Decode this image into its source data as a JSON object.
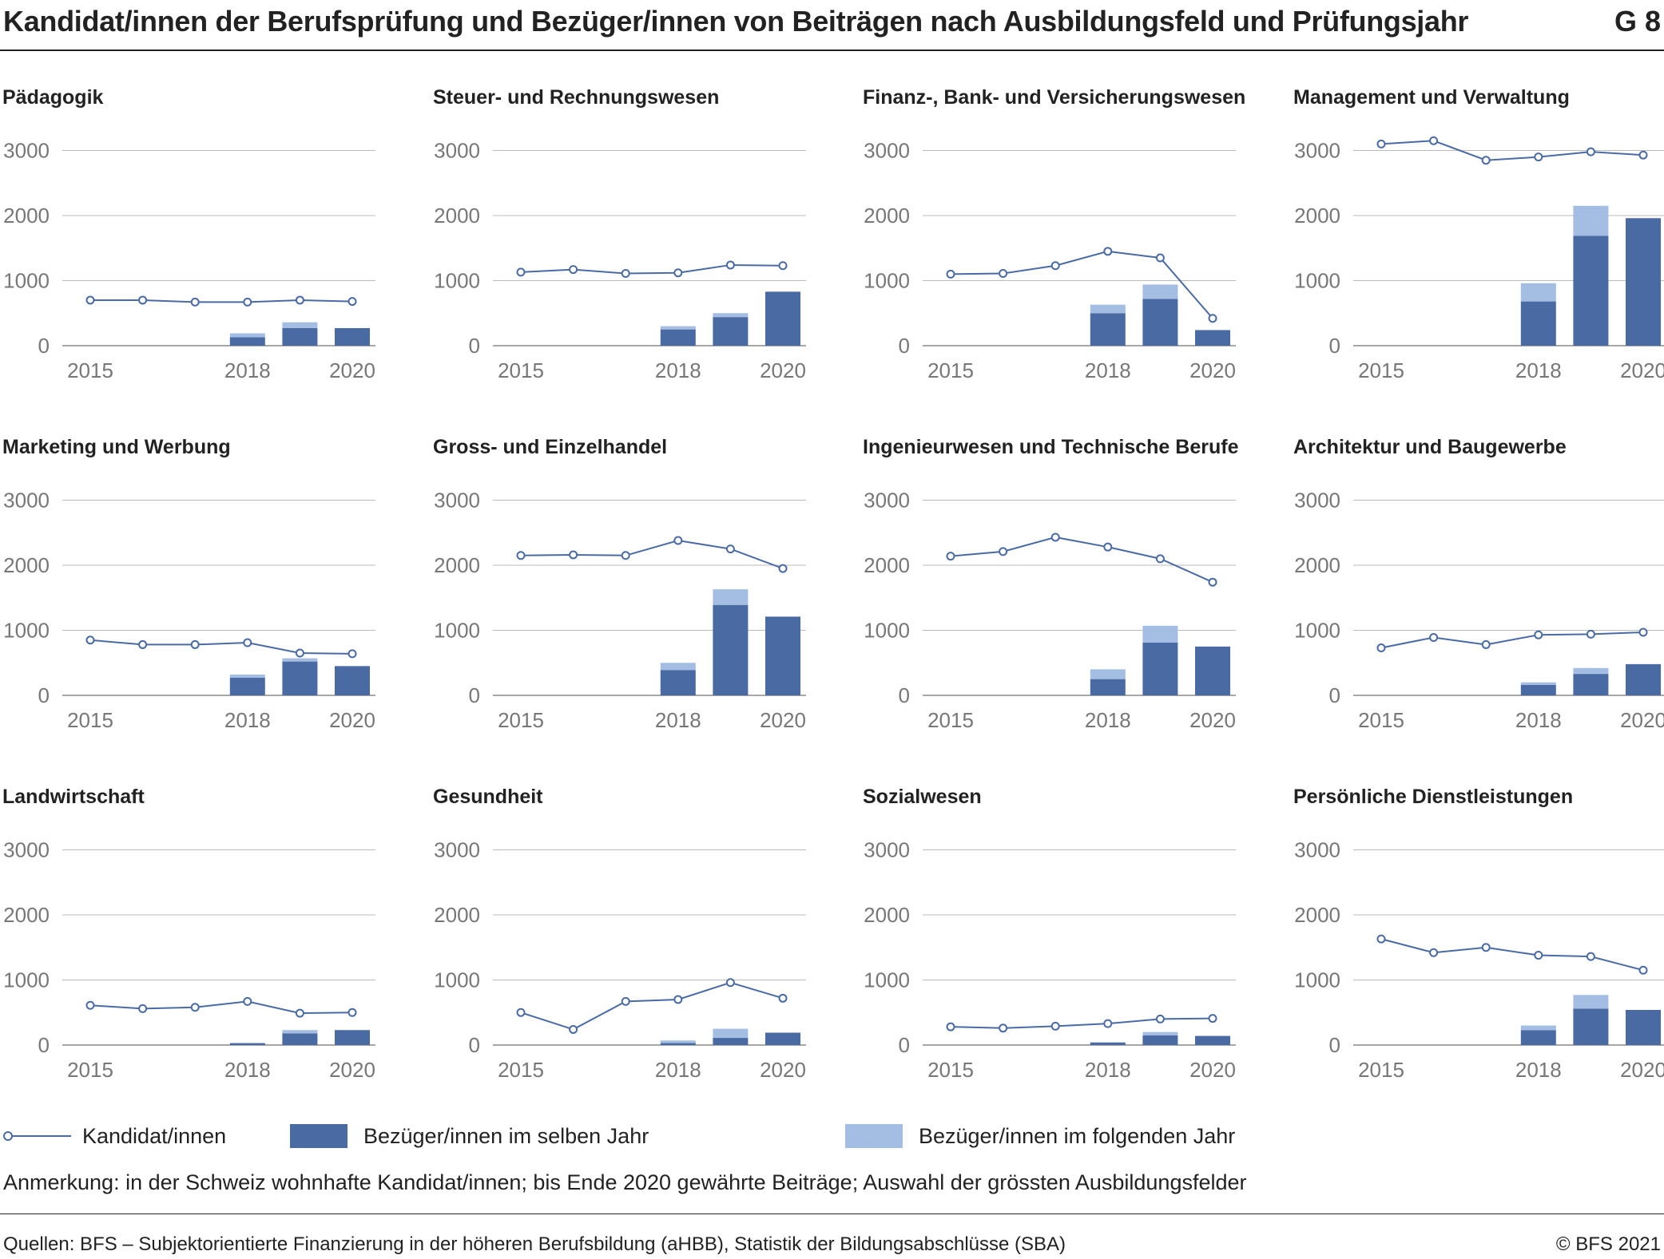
{
  "header": {
    "title": "Kandidat/innen der Berufsprüfung und Bezüger/innen von Beiträgen nach Ausbildungsfeld und Prüfungsjahr",
    "code": "G 8"
  },
  "legend": {
    "candidates": "Kandidat/innen",
    "same_year": "Bezüger/innen im selben Jahr",
    "next_year": "Bezüger/innen im folgenden Jahr"
  },
  "colors": {
    "candidates": "#4a6aa3",
    "same_year": "#4a6aa3",
    "next_year": "#a3bde3",
    "grid": "#bbbbbb"
  },
  "note": "Anmerkung: in der Schweiz wohnhafte Kandidat/innen; bis Ende 2020 gewährte Beiträge; Auswahl der grössten Ausbildungsfelder",
  "source": "Quellen: BFS – Subjektorientierte Finanzierung in der höheren Berufsbildung (aHBB), Statistik der Bildungsabschlüsse (SBA)",
  "copyright": "© BFS 2021",
  "chart_data": [
    {
      "type": "bar+line",
      "title": "Pädagogik",
      "x": [
        2015,
        2016,
        2017,
        2018,
        2019,
        2020
      ],
      "x_ticks": [
        "2015",
        "2018",
        "2020"
      ],
      "y_ticks": [
        "0",
        "1000",
        "2000",
        "3000"
      ],
      "ylim": [
        0,
        3000
      ],
      "grid": true,
      "candidates": [
        700,
        700,
        670,
        670,
        700,
        680
      ],
      "same_year": [
        null,
        null,
        null,
        130,
        270,
        270
      ],
      "next_year": [
        null,
        null,
        null,
        60,
        90,
        0
      ]
    },
    {
      "type": "bar+line",
      "title": "Steuer- und Rechnungswesen",
      "x": [
        2015,
        2016,
        2017,
        2018,
        2019,
        2020
      ],
      "x_ticks": [
        "2015",
        "2018",
        "2020"
      ],
      "y_ticks": [
        "0",
        "1000",
        "2000",
        "3000"
      ],
      "ylim": [
        0,
        3000
      ],
      "grid": true,
      "candidates": [
        1130,
        1170,
        1110,
        1120,
        1240,
        1230
      ],
      "same_year": [
        null,
        null,
        null,
        250,
        440,
        830
      ],
      "next_year": [
        null,
        null,
        null,
        50,
        60,
        0
      ]
    },
    {
      "type": "bar+line",
      "title": "Finanz-, Bank- und Versicherungswesen",
      "x": [
        2015,
        2016,
        2017,
        2018,
        2019,
        2020
      ],
      "x_ticks": [
        "2015",
        "2018",
        "2020"
      ],
      "y_ticks": [
        "0",
        "1000",
        "2000",
        "3000"
      ],
      "ylim": [
        0,
        3000
      ],
      "grid": true,
      "candidates": [
        1100,
        1110,
        1230,
        1450,
        1350,
        420
      ],
      "same_year": [
        null,
        null,
        null,
        500,
        720,
        240
      ],
      "next_year": [
        null,
        null,
        null,
        130,
        220,
        0
      ]
    },
    {
      "type": "bar+line",
      "title": "Management und Verwaltung",
      "x": [
        2015,
        2016,
        2017,
        2018,
        2019,
        2020
      ],
      "x_ticks": [
        "2015",
        "2018",
        "2020"
      ],
      "y_ticks": [
        "0",
        "1000",
        "2000",
        "3000"
      ],
      "ylim": [
        0,
        3000
      ],
      "grid": true,
      "candidates": [
        3100,
        3150,
        2850,
        2900,
        2980,
        2930
      ],
      "same_year": [
        null,
        null,
        null,
        680,
        1690,
        1960
      ],
      "next_year": [
        null,
        null,
        null,
        280,
        460,
        0
      ]
    },
    {
      "type": "bar+line",
      "title": "Marketing und Werbung",
      "x": [
        2015,
        2016,
        2017,
        2018,
        2019,
        2020
      ],
      "x_ticks": [
        "2015",
        "2018",
        "2020"
      ],
      "y_ticks": [
        "0",
        "1000",
        "2000",
        "3000"
      ],
      "ylim": [
        0,
        3000
      ],
      "grid": true,
      "candidates": [
        850,
        780,
        780,
        810,
        650,
        640
      ],
      "same_year": [
        null,
        null,
        null,
        270,
        520,
        450
      ],
      "next_year": [
        null,
        null,
        null,
        50,
        50,
        0
      ]
    },
    {
      "type": "bar+line",
      "title": "Gross- und Einzelhandel",
      "x": [
        2015,
        2016,
        2017,
        2018,
        2019,
        2020
      ],
      "x_ticks": [
        "2015",
        "2018",
        "2020"
      ],
      "y_ticks": [
        "0",
        "1000",
        "2000",
        "3000"
      ],
      "ylim": [
        0,
        3000
      ],
      "grid": true,
      "candidates": [
        2150,
        2160,
        2150,
        2380,
        2250,
        1950
      ],
      "same_year": [
        null,
        null,
        null,
        390,
        1390,
        1210
      ],
      "next_year": [
        null,
        null,
        null,
        110,
        240,
        0
      ]
    },
    {
      "type": "bar+line",
      "title": "Ingenieurwesen und Technische Berufe",
      "x": [
        2015,
        2016,
        2017,
        2018,
        2019,
        2020
      ],
      "x_ticks": [
        "2015",
        "2018",
        "2020"
      ],
      "y_ticks": [
        "0",
        "1000",
        "2000",
        "3000"
      ],
      "ylim": [
        0,
        3000
      ],
      "grid": true,
      "candidates": [
        2140,
        2210,
        2430,
        2280,
        2100,
        1740
      ],
      "same_year": [
        null,
        null,
        null,
        250,
        810,
        750
      ],
      "next_year": [
        null,
        null,
        null,
        150,
        260,
        0
      ]
    },
    {
      "type": "bar+line",
      "title": "Architektur und Baugewerbe",
      "x": [
        2015,
        2016,
        2017,
        2018,
        2019,
        2020
      ],
      "x_ticks": [
        "2015",
        "2018",
        "2020"
      ],
      "y_ticks": [
        "0",
        "1000",
        "2000",
        "3000"
      ],
      "ylim": [
        0,
        3000
      ],
      "grid": true,
      "candidates": [
        730,
        890,
        780,
        930,
        940,
        970
      ],
      "same_year": [
        null,
        null,
        null,
        160,
        330,
        480
      ],
      "next_year": [
        null,
        null,
        null,
        40,
        90,
        0
      ]
    },
    {
      "type": "bar+line",
      "title": "Landwirtschaft",
      "x": [
        2015,
        2016,
        2017,
        2018,
        2019,
        2020
      ],
      "x_ticks": [
        "2015",
        "2018",
        "2020"
      ],
      "y_ticks": [
        "0",
        "1000",
        "2000",
        "3000"
      ],
      "ylim": [
        0,
        3000
      ],
      "grid": true,
      "candidates": [
        610,
        560,
        580,
        670,
        490,
        500
      ],
      "same_year": [
        null,
        null,
        null,
        30,
        180,
        230
      ],
      "next_year": [
        null,
        null,
        null,
        0,
        50,
        0
      ]
    },
    {
      "type": "bar+line",
      "title": "Gesundheit",
      "x": [
        2015,
        2016,
        2017,
        2018,
        2019,
        2020
      ],
      "x_ticks": [
        "2015",
        "2018",
        "2020"
      ],
      "y_ticks": [
        "0",
        "1000",
        "2000",
        "3000"
      ],
      "ylim": [
        0,
        3000
      ],
      "grid": true,
      "candidates": [
        500,
        240,
        670,
        700,
        960,
        720
      ],
      "same_year": [
        null,
        null,
        null,
        30,
        110,
        190
      ],
      "next_year": [
        null,
        null,
        null,
        40,
        140,
        0
      ]
    },
    {
      "type": "bar+line",
      "title": "Sozialwesen",
      "x": [
        2015,
        2016,
        2017,
        2018,
        2019,
        2020
      ],
      "x_ticks": [
        "2015",
        "2018",
        "2020"
      ],
      "y_ticks": [
        "0",
        "1000",
        "2000",
        "3000"
      ],
      "ylim": [
        0,
        3000
      ],
      "grid": true,
      "candidates": [
        280,
        260,
        290,
        330,
        400,
        410
      ],
      "same_year": [
        null,
        null,
        null,
        40,
        150,
        140
      ],
      "next_year": [
        null,
        null,
        null,
        0,
        50,
        0
      ]
    },
    {
      "type": "bar+line",
      "title": "Persönliche Dienstleistungen",
      "x": [
        2015,
        2016,
        2017,
        2018,
        2019,
        2020
      ],
      "x_ticks": [
        "2015",
        "2018",
        "2020"
      ],
      "y_ticks": [
        "0",
        "1000",
        "2000",
        "3000"
      ],
      "ylim": [
        0,
        3000
      ],
      "grid": true,
      "candidates": [
        1630,
        1420,
        1500,
        1380,
        1360,
        1150
      ],
      "same_year": [
        null,
        null,
        null,
        230,
        560,
        540
      ],
      "next_year": [
        null,
        null,
        null,
        70,
        210,
        0
      ]
    }
  ]
}
